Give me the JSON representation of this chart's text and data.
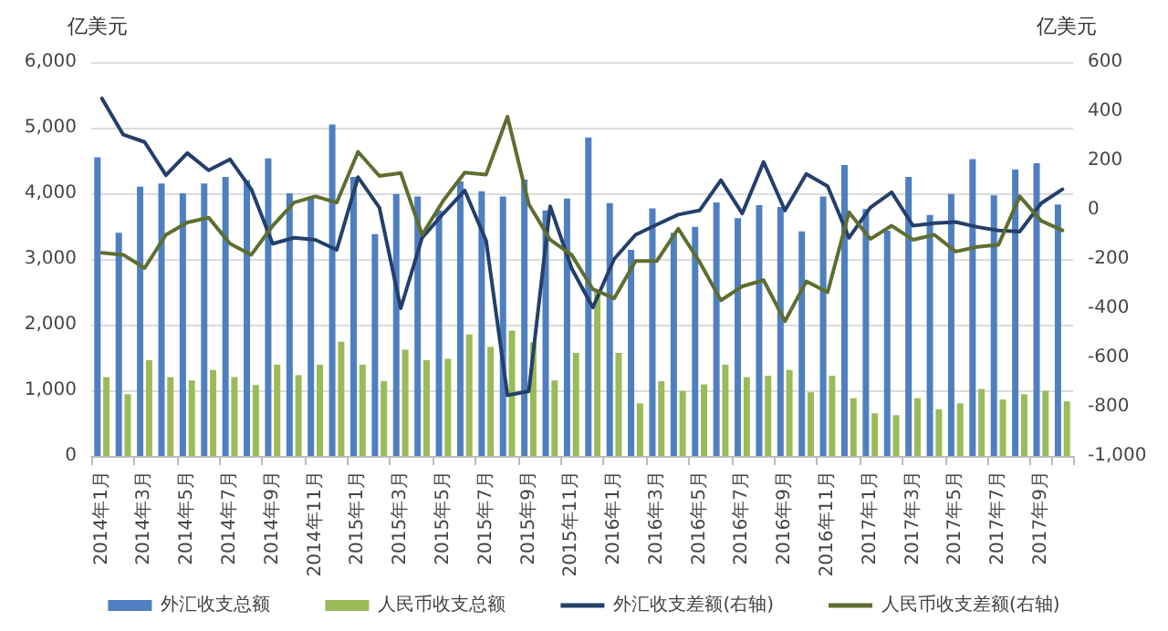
{
  "chart_data": {
    "type": "bar",
    "ylabel": "亿美元",
    "y2label": "亿美元",
    "categories": [
      "2014年1月",
      null,
      "2014年3月",
      null,
      "2014年5月",
      null,
      "2014年7月",
      null,
      "2014年9月",
      null,
      "2014年11月",
      null,
      "2015年1月",
      null,
      "2015年3月",
      null,
      "2015年5月",
      null,
      "2015年7月",
      null,
      "2015年9月",
      null,
      "2015年11月",
      null,
      "2016年1月",
      null,
      "2016年3月",
      null,
      "2016年5月",
      null,
      "2016年7月",
      null,
      "2016年9月",
      null,
      "2016年11月",
      null,
      "2017年1月",
      null,
      "2017年3月",
      null,
      "2017年5月",
      null,
      "2017年7月",
      null,
      "2017年9月",
      null
    ],
    "series": [
      {
        "name": "外汇收支总额",
        "color": "#4f7fc0",
        "values": [
          4550,
          3400,
          4100,
          4150,
          4000,
          4150,
          4250,
          4200,
          4530,
          4000,
          3950,
          5050,
          4250,
          3380,
          3990,
          3950,
          3740,
          4180,
          4030,
          3950,
          4210,
          3740,
          3920,
          4850,
          3850,
          3140,
          3770,
          3400,
          3490,
          3860,
          3620,
          3820,
          3790,
          3420,
          3950,
          4430,
          3760,
          3430,
          4250,
          3670,
          3990,
          4520,
          3970,
          4360,
          4460,
          3830
        ]
      },
      {
        "name": "人民币收支总额",
        "color": "#9bbb59",
        "values": [
          1200,
          940,
          1460,
          1200,
          1150,
          1310,
          1200,
          1080,
          1390,
          1230,
          1390,
          1740,
          1390,
          1140,
          1620,
          1460,
          1480,
          1850,
          1660,
          1910,
          1730,
          1150,
          1570,
          2500,
          1570,
          800,
          1140,
          990,
          1090,
          1390,
          1200,
          1220,
          1310,
          970,
          1220,
          880,
          650,
          620,
          880,
          710,
          800,
          1020,
          860,
          940,
          990,
          830
        ]
      },
      {
        "name": "外汇收支差额(右轴)",
        "type": "line",
        "axis": "y2",
        "color": "#243f6b",
        "values": [
          452,
          305,
          275,
          140,
          230,
          160,
          205,
          83,
          -138,
          -114,
          -122,
          -163,
          132,
          9,
          -400,
          -114,
          -15,
          78,
          -126,
          -754,
          -737,
          14,
          -237,
          -397,
          -200,
          -102,
          -60,
          -20,
          -3,
          120,
          -15,
          194,
          -3,
          145,
          95,
          -114,
          9,
          71,
          -65,
          -55,
          -50,
          -70,
          -84,
          -89,
          26,
          83
        ]
      },
      {
        "name": "人民币收支差额(右轴)",
        "type": "line",
        "axis": "y2",
        "color": "#5e6e30",
        "values": [
          -175,
          -183,
          -237,
          -102,
          -52,
          -32,
          -138,
          -183,
          -65,
          29,
          54,
          29,
          235,
          137,
          149,
          -102,
          38,
          151,
          143,
          378,
          22,
          -122,
          -183,
          -323,
          -360,
          -208,
          -208,
          -77,
          -212,
          -368,
          -311,
          -286,
          -453,
          -291,
          -335,
          -10,
          -119,
          -65,
          -122,
          -102,
          -170,
          -151,
          -143,
          54,
          -45,
          -84
        ]
      }
    ],
    "ylim": [
      0,
      6000
    ],
    "yticks": [
      0,
      {
        "value": 1000,
        "label": "1,000"
      },
      {
        "value": 2000,
        "label": "2,000"
      },
      {
        "value": 3000,
        "label": "3,000"
      },
      {
        "value": 4000,
        "label": "4,000"
      },
      {
        "value": 5000,
        "label": "5,000"
      },
      {
        "value": 6000,
        "label": "6,000"
      }
    ],
    "y2lim": [
      -1000,
      600
    ],
    "y2ticks": [
      {
        "value": -1000,
        "label": "-1,000"
      },
      -800,
      -600,
      -400,
      -200,
      0,
      200,
      400,
      600
    ],
    "grid": "y",
    "legend": "bottom",
    "marker": "none",
    "line_style": "solid"
  }
}
